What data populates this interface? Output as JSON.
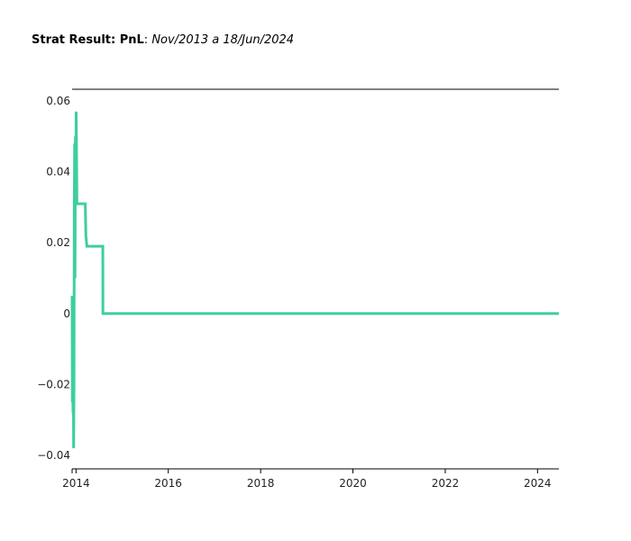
{
  "title": {
    "bold_part": "Strat Result: PnL",
    "separator": ": ",
    "italic_part": "Nov/2013 a 18/Jun/2024"
  },
  "colors": {
    "line": "#3ecf9e",
    "axis": "#000000",
    "text": "#222222"
  },
  "chart_data": {
    "type": "line",
    "title": "Strat Result: PnL: Nov/2013 a 18/Jun/2024",
    "xlabel": "",
    "ylabel": "",
    "x_axis_type": "date",
    "xlim": [
      "2013-12-01",
      "2024-06-18"
    ],
    "ylim": [
      -0.04,
      0.06
    ],
    "x_tick_labels": [
      "2014",
      "2016",
      "2018",
      "2020",
      "2022",
      "2024"
    ],
    "x_tick_values": [
      "2014-01-01",
      "2016-01-01",
      "2018-01-01",
      "2020-01-01",
      "2022-01-01",
      "2024-01-01"
    ],
    "y_tick_values": [
      -0.04,
      -0.02,
      0,
      0.02,
      0.04,
      0.06
    ],
    "y_tick_labels": [
      "−0.04",
      "−0.02",
      "0",
      "0.02",
      "0.04",
      "0.06"
    ],
    "grid": false,
    "legend": "none",
    "series": [
      {
        "x": [
          "2013-12-01",
          "2013-12-03",
          "2013-12-05",
          "2013-12-08",
          "2013-12-10",
          "2013-12-13",
          "2013-12-16",
          "2013-12-18",
          "2013-12-21",
          "2013-12-24",
          "2013-12-27",
          "2013-12-30",
          "2014-01-02",
          "2014-01-05",
          "2014-01-08",
          "2014-01-11",
          "2014-01-14",
          "2014-03-15",
          "2014-03-20",
          "2014-03-28",
          "2014-08-01",
          "2014-08-02",
          "2024-06-18"
        ],
        "y": [
          0.005,
          -0.025,
          -0.015,
          -0.028,
          -0.01,
          -0.038,
          -0.02,
          0.03,
          0.048,
          0.01,
          0.05,
          0.035,
          0.057,
          0.045,
          0.031,
          0.031,
          0.031,
          0.031,
          0.022,
          0.019,
          0.019,
          0.0,
          0.0
        ]
      }
    ]
  }
}
